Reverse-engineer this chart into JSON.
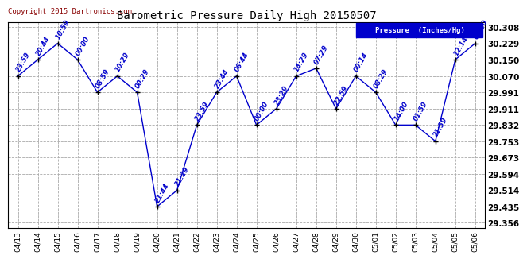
{
  "title": "Barometric Pressure Daily High 20150507",
  "ylabel": "Pressure  (Inches/Hg)",
  "copyright": "Copyright 2015 Dartronics.com",
  "line_color": "#0000cc",
  "marker_color": "#000000",
  "background_color": "#ffffff",
  "grid_color": "#aaaaaa",
  "legend_bg": "#0000cc",
  "legend_text": "Pressure  (Inches/Hg)",
  "x_labels": [
    "04/13",
    "04/14",
    "04/15",
    "04/16",
    "04/17",
    "04/18",
    "04/19",
    "04/20",
    "04/21",
    "04/22",
    "04/23",
    "04/24",
    "04/25",
    "04/26",
    "04/27",
    "04/28",
    "04/29",
    "04/30",
    "05/01",
    "05/02",
    "05/03",
    "05/04",
    "05/05",
    "05/06"
  ],
  "y_values": [
    30.07,
    30.15,
    30.229,
    30.15,
    29.991,
    30.07,
    29.991,
    29.435,
    29.514,
    29.832,
    29.991,
    30.07,
    29.832,
    29.911,
    30.07,
    30.108,
    29.911,
    30.07,
    29.991,
    29.832,
    29.832,
    29.753,
    30.15,
    30.229
  ],
  "annotations": [
    "23:59",
    "20:44",
    "10:59",
    "00:00",
    "08:59",
    "10:29",
    "00:29",
    "21:44",
    "21:29",
    "23:59",
    "23:44",
    "06:44",
    "00:00",
    "23:29",
    "14:29",
    "07:29",
    "22:59",
    "00:14",
    "08:29",
    "14:00",
    "01:59",
    "21:59",
    "12:14",
    "00:00"
  ],
  "ylim": [
    29.33,
    30.33
  ],
  "yticks": [
    29.356,
    29.435,
    29.514,
    29.594,
    29.673,
    29.753,
    29.832,
    29.911,
    29.991,
    30.07,
    30.15,
    30.229,
    30.308
  ],
  "ytick_labels": [
    "29.356",
    "29.435",
    "29.514",
    "29.594",
    "29.673",
    "29.753",
    "29.832",
    "29.911",
    "29.991",
    "30.070",
    "30.150",
    "30.229",
    "30.308"
  ]
}
